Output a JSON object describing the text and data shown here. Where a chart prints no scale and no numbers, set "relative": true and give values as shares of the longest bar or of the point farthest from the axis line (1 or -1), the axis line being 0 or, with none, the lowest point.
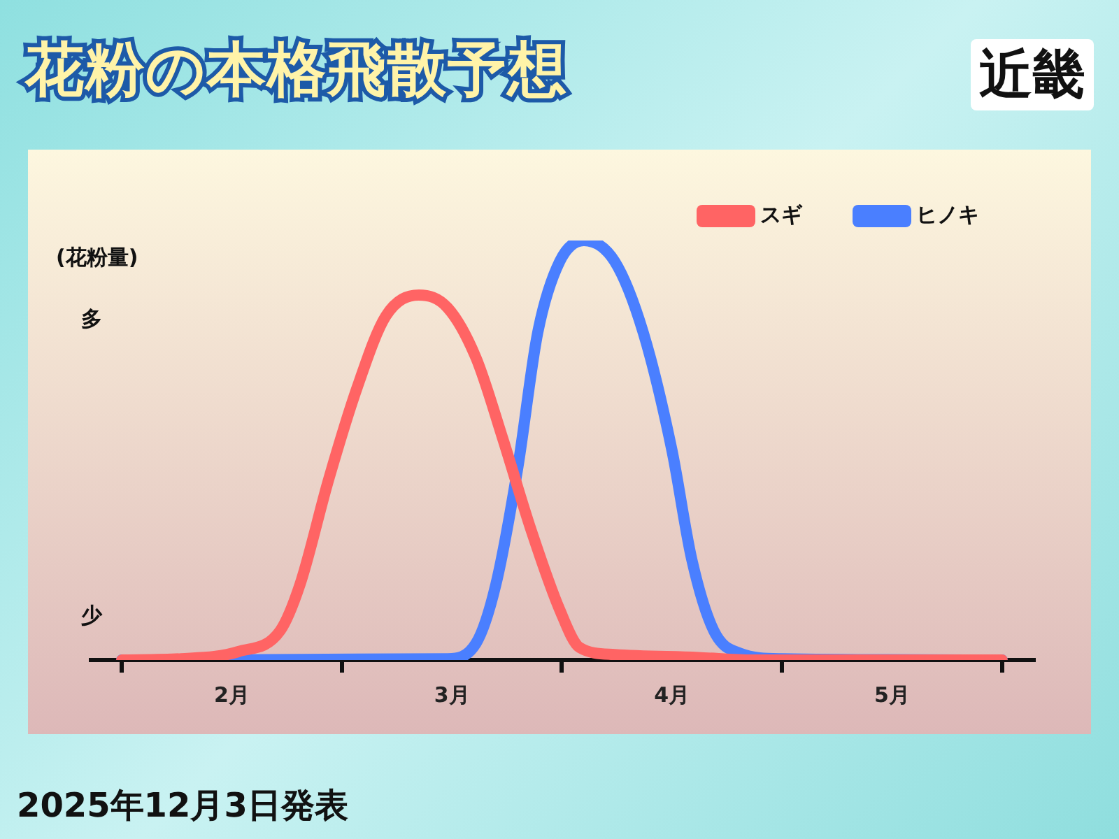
{
  "chart_data": {
    "type": "line",
    "title": "花粉の本格飛散予想",
    "subtitle": "近畿",
    "ylabel": "(花粉量)",
    "relative": true,
    "xlim": [
      1.86,
      6.15
    ],
    "xticks": [
      {
        "value": 2,
        "label": null
      },
      {
        "value": 2.5,
        "label": "2月"
      },
      {
        "value": 3,
        "label": null
      },
      {
        "value": 3.5,
        "label": "3月"
      },
      {
        "value": 4,
        "label": null
      },
      {
        "value": 4.5,
        "label": "4月"
      },
      {
        "value": 5,
        "label": null
      },
      {
        "value": 5.5,
        "label": "5月"
      },
      {
        "value": 6,
        "label": null
      }
    ],
    "series": [
      {
        "name": "スギ",
        "color": "#ff6464",
        "x": [
          2,
          2.27,
          2.53,
          2.72,
          2.81,
          2.94,
          3.07,
          3.2,
          3.35,
          3.48,
          3.61,
          3.73,
          3.86,
          3.99,
          4.08,
          4.24,
          4.62,
          4.87,
          6
        ],
        "values": [
          0,
          0.003,
          0.02,
          0.07,
          0.18,
          0.43,
          0.65,
          0.82,
          0.87,
          0.84,
          0.72,
          0.53,
          0.31,
          0.12,
          0.03,
          0.013,
          0.006,
          0,
          0
        ]
      },
      {
        "name": "ヒノキ",
        "color": "#4a7fff",
        "x": [
          2,
          3.48,
          3.61,
          3.7,
          3.8,
          3.89,
          3.99,
          4.1,
          4.24,
          4.37,
          4.5,
          4.59,
          4.69,
          4.81,
          5,
          6
        ],
        "values": [
          0,
          0.003,
          0.04,
          0.18,
          0.46,
          0.78,
          0.95,
          1,
          0.95,
          0.78,
          0.5,
          0.24,
          0.07,
          0.016,
          0.003,
          0
        ]
      }
    ],
    "annotations": [
      "多",
      "少",
      "2025年12月3日発表"
    ],
    "legend": "top right",
    "grid": false,
    "marker": "none",
    "line_style": "solid"
  }
}
